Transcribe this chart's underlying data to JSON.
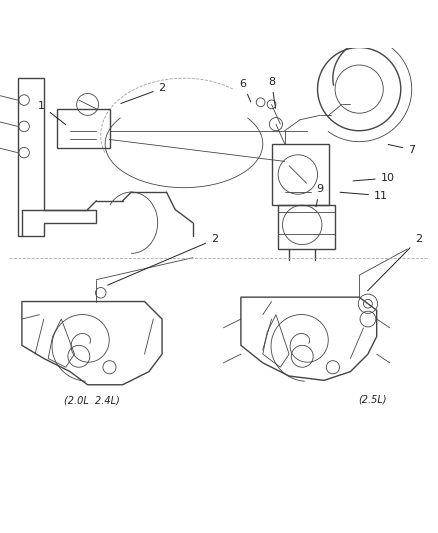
{
  "bg_color": "#ffffff",
  "line_color": "#444444",
  "label_color": "#222222",
  "fig_width": 4.38,
  "fig_height": 5.33,
  "dpi": 100
}
